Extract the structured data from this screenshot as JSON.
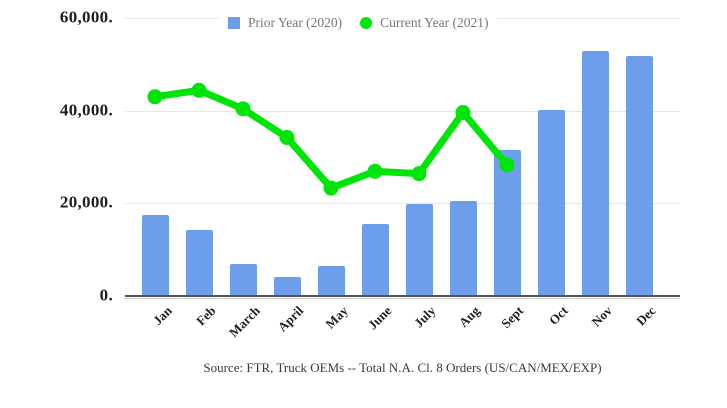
{
  "caption": "Source: FTR, Truck OEMs -- Total N.A. Cl. 8 Orders (US/CAN/MEX/EXP)",
  "colors": {
    "bar": "#6d9eeb",
    "line": "#00e40a",
    "grid": "#e6e6e6",
    "axis": "#545454",
    "tick_text": "#1f1f1f",
    "legend_text": "#777777",
    "caption_text": "#3a3a3a",
    "background": "#ffffff"
  },
  "chart_data": {
    "type": "bar",
    "title": "",
    "xlabel": "",
    "ylabel": "",
    "categories": [
      "Jan",
      "Feb",
      "March",
      "April",
      "May",
      "June",
      "July",
      "Aug",
      "Sept",
      "Oct",
      "Nov",
      "Dec"
    ],
    "series": [
      {
        "name": "Prior Year (2020)",
        "type": "bar",
        "color": "#6d9eeb",
        "values": [
          17400,
          14200,
          7000,
          4100,
          6500,
          15600,
          19900,
          20600,
          31500,
          40200,
          52900,
          51800
        ]
      },
      {
        "name": "Current Year (2021)",
        "type": "line",
        "color": "#00e40a",
        "values": [
          43000,
          44400,
          40400,
          34200,
          23300,
          26900,
          26400,
          39600,
          28300,
          null,
          null,
          null
        ]
      }
    ],
    "ylim": [
      0,
      60000
    ],
    "y_ticks": [
      {
        "value": 0,
        "label": "0."
      },
      {
        "value": 20000,
        "label": "20,000."
      },
      {
        "value": 40000,
        "label": "40,000."
      },
      {
        "value": 60000,
        "label": "60,000."
      }
    ],
    "grid": true,
    "legend_position": "top-center"
  }
}
